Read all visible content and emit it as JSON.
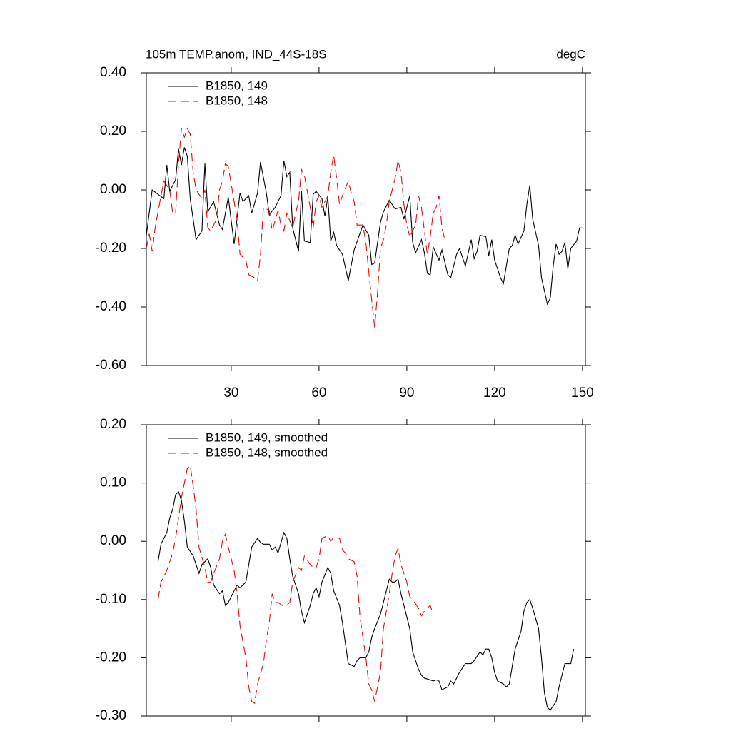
{
  "chart_data": [
    {
      "type": "line",
      "title": "105m TEMP.anom, IND_44S-18S",
      "units": "degC",
      "xlim": [
        1,
        151
      ],
      "xticks": [
        30,
        60,
        90,
        120,
        150
      ],
      "ylim": [
        -0.6,
        0.4
      ],
      "yticks": [
        {
          "value": -0.6,
          "label": "-0.60"
        },
        {
          "value": -0.4,
          "label": "-0.40"
        },
        {
          "value": -0.2,
          "label": "-0.20"
        },
        {
          "value": 0,
          "label": "0.00"
        },
        {
          "value": 0.2,
          "label": "0.20"
        },
        {
          "value": 0.4,
          "label": "0.40"
        }
      ],
      "series": [
        {
          "name": "B1850, 149",
          "color": "#000000",
          "line_style": "solid",
          "x": [
            1,
            3,
            5,
            7,
            8,
            9,
            11,
            12,
            13,
            14,
            15,
            16,
            18,
            20,
            21,
            22,
            24,
            26,
            27,
            29,
            31,
            33,
            34,
            36,
            37,
            39,
            40,
            42,
            43,
            45,
            47,
            48,
            49,
            50,
            51,
            53,
            54,
            55,
            57,
            58,
            59,
            61,
            62,
            63,
            64,
            65,
            66,
            68,
            70,
            72,
            75,
            77,
            78,
            79,
            81,
            82,
            84,
            86,
            88,
            89,
            91,
            92,
            93,
            95,
            96,
            97,
            98,
            99,
            101,
            102,
            104,
            105,
            107,
            108,
            110,
            112,
            113,
            114,
            115,
            117,
            118,
            119,
            120,
            122,
            123,
            125,
            126,
            127,
            128,
            130,
            131,
            132,
            133,
            135,
            136,
            138,
            139,
            140,
            141,
            142,
            143,
            144,
            145,
            146,
            148,
            149,
            150
          ],
          "values": [
            -0.156,
            0.0,
            -0.015,
            -0.03,
            0.085,
            -0.005,
            0.035,
            0.14,
            0.085,
            0.145,
            0.115,
            -0.03,
            -0.17,
            -0.14,
            0.09,
            -0.075,
            -0.04,
            -0.12,
            -0.135,
            -0.025,
            -0.185,
            -0.01,
            -0.04,
            -0.02,
            -0.08,
            -0.01,
            0.095,
            -0.01,
            -0.085,
            -0.06,
            -0.02,
            0.1,
            0.045,
            0.06,
            -0.13,
            -0.21,
            -0.005,
            -0.175,
            -0.18,
            -0.015,
            -0.005,
            -0.03,
            -0.09,
            -0.025,
            -0.175,
            -0.145,
            -0.19,
            -0.22,
            -0.31,
            -0.205,
            -0.12,
            -0.155,
            -0.255,
            -0.25,
            -0.11,
            -0.075,
            -0.035,
            -0.065,
            -0.06,
            -0.1,
            -0.02,
            -0.18,
            -0.215,
            -0.17,
            -0.215,
            -0.285,
            -0.29,
            -0.195,
            -0.24,
            -0.205,
            -0.29,
            -0.3,
            -0.22,
            -0.2,
            -0.26,
            -0.17,
            -0.235,
            -0.21,
            -0.155,
            -0.16,
            -0.225,
            -0.17,
            -0.24,
            -0.3,
            -0.32,
            -0.2,
            -0.19,
            -0.155,
            -0.185,
            -0.14,
            -0.05,
            0.015,
            -0.1,
            -0.19,
            -0.3,
            -0.39,
            -0.37,
            -0.26,
            -0.185,
            -0.22,
            -0.21,
            -0.18,
            -0.27,
            -0.2,
            -0.175,
            -0.13,
            -0.13
          ]
        },
        {
          "name": "B1850, 148",
          "color": "#ff0000",
          "line_style": "dashed",
          "x": [
            1,
            2,
            3,
            4,
            6,
            7,
            9,
            10,
            11,
            12,
            13,
            14,
            15,
            16,
            17,
            18,
            20,
            21,
            22,
            23,
            25,
            26,
            27,
            28,
            29,
            31,
            32,
            33,
            35,
            36,
            38,
            39,
            40,
            41,
            43,
            44,
            46,
            47,
            48,
            49,
            51,
            52,
            53,
            54,
            55,
            57,
            58,
            59,
            60,
            61,
            63,
            64,
            65,
            66,
            67,
            68,
            70,
            71,
            72,
            73,
            75,
            76,
            77,
            79,
            80,
            81,
            82,
            83,
            84,
            86,
            87,
            88,
            89,
            90,
            91,
            93,
            94,
            95,
            97,
            98,
            99,
            100,
            101,
            102,
            103
          ],
          "values": [
            -0.2,
            -0.15,
            -0.21,
            -0.13,
            -0.02,
            0.03,
            0.0,
            -0.08,
            -0.08,
            0.09,
            0.21,
            0.18,
            0.21,
            0.19,
            0.06,
            0.0,
            -0.03,
            0.0,
            -0.13,
            -0.14,
            -0.1,
            0.0,
            0.03,
            0.09,
            0.08,
            -0.04,
            -0.1,
            -0.22,
            -0.24,
            -0.29,
            -0.3,
            -0.31,
            -0.22,
            -0.06,
            -0.07,
            -0.14,
            -0.07,
            -0.12,
            -0.14,
            -0.08,
            -0.13,
            -0.08,
            -0.04,
            0.07,
            0.05,
            -0.06,
            -0.13,
            -0.04,
            -0.02,
            -0.06,
            -0.02,
            0.06,
            0.12,
            0.04,
            -0.05,
            -0.02,
            0.03,
            -0.01,
            -0.04,
            -0.12,
            -0.12,
            -0.18,
            -0.28,
            -0.47,
            -0.35,
            -0.2,
            -0.17,
            -0.12,
            -0.04,
            0.04,
            0.1,
            0.06,
            -0.05,
            -0.12,
            -0.16,
            -0.12,
            -0.02,
            -0.06,
            -0.22,
            -0.16,
            -0.08,
            -0.06,
            -0.02,
            -0.13,
            -0.17
          ]
        }
      ]
    },
    {
      "type": "line",
      "xlim": [
        1,
        151
      ],
      "ylim": [
        -0.3,
        0.2
      ],
      "yticks": [
        {
          "value": -0.3,
          "label": "-0.30"
        },
        {
          "value": -0.2,
          "label": "-0.20"
        },
        {
          "value": -0.1,
          "label": "-0.10"
        },
        {
          "value": 0,
          "label": "0.00"
        },
        {
          "value": 0.1,
          "label": "0.10"
        },
        {
          "value": 0.2,
          "label": "0.20"
        }
      ],
      "series": [
        {
          "name": "B1850, 149, smoothed",
          "color": "#000000",
          "line_style": "solid",
          "x": [
            5,
            6,
            8,
            9,
            10,
            11,
            12,
            13,
            14,
            15,
            17,
            18,
            19,
            20,
            22,
            23,
            24,
            26,
            27,
            28,
            29,
            31,
            32,
            33,
            35,
            36,
            37,
            39,
            40,
            41,
            43,
            44,
            45,
            46,
            48,
            49,
            50,
            51,
            53,
            54,
            55,
            57,
            58,
            59,
            60,
            61,
            63,
            64,
            65,
            67,
            68,
            69,
            70,
            72,
            73,
            74,
            76,
            77,
            78,
            79,
            81,
            82,
            84,
            85,
            86,
            87,
            88,
            90,
            91,
            92,
            94,
            95,
            96,
            98,
            99,
            100,
            101,
            102,
            104,
            105,
            106,
            107,
            108,
            110,
            111,
            112,
            113,
            115,
            116,
            117,
            118,
            119,
            120,
            121,
            123,
            124,
            125,
            126,
            127,
            129,
            130,
            131,
            132,
            133,
            135,
            136,
            137,
            138,
            139,
            141,
            142,
            143,
            144,
            146,
            147
          ],
          "values": [
            -0.035,
            -0.005,
            0.015,
            0.04,
            0.055,
            0.08,
            0.085,
            0.07,
            0.035,
            -0.01,
            -0.025,
            -0.04,
            -0.055,
            -0.04,
            -0.03,
            -0.045,
            -0.075,
            -0.09,
            -0.085,
            -0.11,
            -0.105,
            -0.085,
            -0.075,
            -0.08,
            -0.07,
            -0.04,
            -0.01,
            0.005,
            -0.002,
            -0.005,
            -0.005,
            -0.015,
            -0.01,
            -0.02,
            0.015,
            0.005,
            -0.03,
            -0.06,
            -0.09,
            -0.12,
            -0.14,
            -0.11,
            -0.09,
            -0.08,
            -0.095,
            -0.07,
            -0.045,
            -0.055,
            -0.085,
            -0.11,
            -0.14,
            -0.175,
            -0.21,
            -0.215,
            -0.205,
            -0.2,
            -0.2,
            -0.19,
            -0.165,
            -0.15,
            -0.125,
            -0.105,
            -0.065,
            -0.07,
            -0.07,
            -0.065,
            -0.09,
            -0.13,
            -0.15,
            -0.19,
            -0.22,
            -0.23,
            -0.235,
            -0.238,
            -0.24,
            -0.238,
            -0.24,
            -0.255,
            -0.25,
            -0.24,
            -0.245,
            -0.235,
            -0.225,
            -0.21,
            -0.21,
            -0.21,
            -0.205,
            -0.19,
            -0.195,
            -0.185,
            -0.185,
            -0.2,
            -0.225,
            -0.24,
            -0.245,
            -0.25,
            -0.245,
            -0.215,
            -0.185,
            -0.155,
            -0.12,
            -0.105,
            -0.1,
            -0.115,
            -0.15,
            -0.2,
            -0.26,
            -0.285,
            -0.29,
            -0.275,
            -0.25,
            -0.23,
            -0.21,
            -0.21,
            -0.185
          ]
        },
        {
          "name": "B1850, 148, smoothed",
          "color": "#ff0000",
          "line_style": "dashed",
          "x": [
            5,
            6,
            8,
            9,
            10,
            11,
            12,
            13,
            14,
            15,
            16,
            17,
            18,
            19,
            21,
            22,
            23,
            24,
            26,
            27,
            28,
            29,
            31,
            32,
            33,
            35,
            36,
            37,
            38,
            39,
            41,
            42,
            43,
            44,
            45,
            46,
            48,
            49,
            50,
            51,
            53,
            54,
            55,
            57,
            58,
            59,
            60,
            61,
            63,
            64,
            65,
            67,
            68,
            69,
            70,
            72,
            73,
            74,
            76,
            77,
            78,
            79,
            81,
            82,
            84,
            85,
            86,
            87,
            88,
            90,
            91,
            92,
            94,
            95,
            96,
            98,
            99
          ],
          "values": [
            -0.1,
            -0.07,
            -0.05,
            -0.035,
            -0.02,
            0.005,
            0.04,
            0.075,
            0.1,
            0.125,
            0.13,
            0.095,
            0.055,
            -0.01,
            -0.045,
            -0.07,
            -0.07,
            -0.055,
            -0.03,
            0.0,
            0.012,
            -0.01,
            -0.05,
            -0.09,
            -0.145,
            -0.2,
            -0.25,
            -0.275,
            -0.278,
            -0.245,
            -0.21,
            -0.17,
            -0.14,
            -0.09,
            -0.105,
            -0.105,
            -0.112,
            -0.11,
            -0.105,
            -0.07,
            -0.045,
            -0.05,
            -0.025,
            -0.04,
            -0.045,
            -0.045,
            -0.03,
            0.005,
            0.01,
            0.0,
            0.007,
            0.005,
            -0.015,
            -0.02,
            -0.03,
            -0.035,
            -0.06,
            -0.13,
            -0.2,
            -0.245,
            -0.255,
            -0.275,
            -0.225,
            -0.15,
            -0.09,
            -0.055,
            -0.025,
            -0.012,
            -0.04,
            -0.07,
            -0.095,
            -0.1,
            -0.115,
            -0.128,
            -0.12,
            -0.11,
            -0.125
          ]
        }
      ]
    }
  ]
}
